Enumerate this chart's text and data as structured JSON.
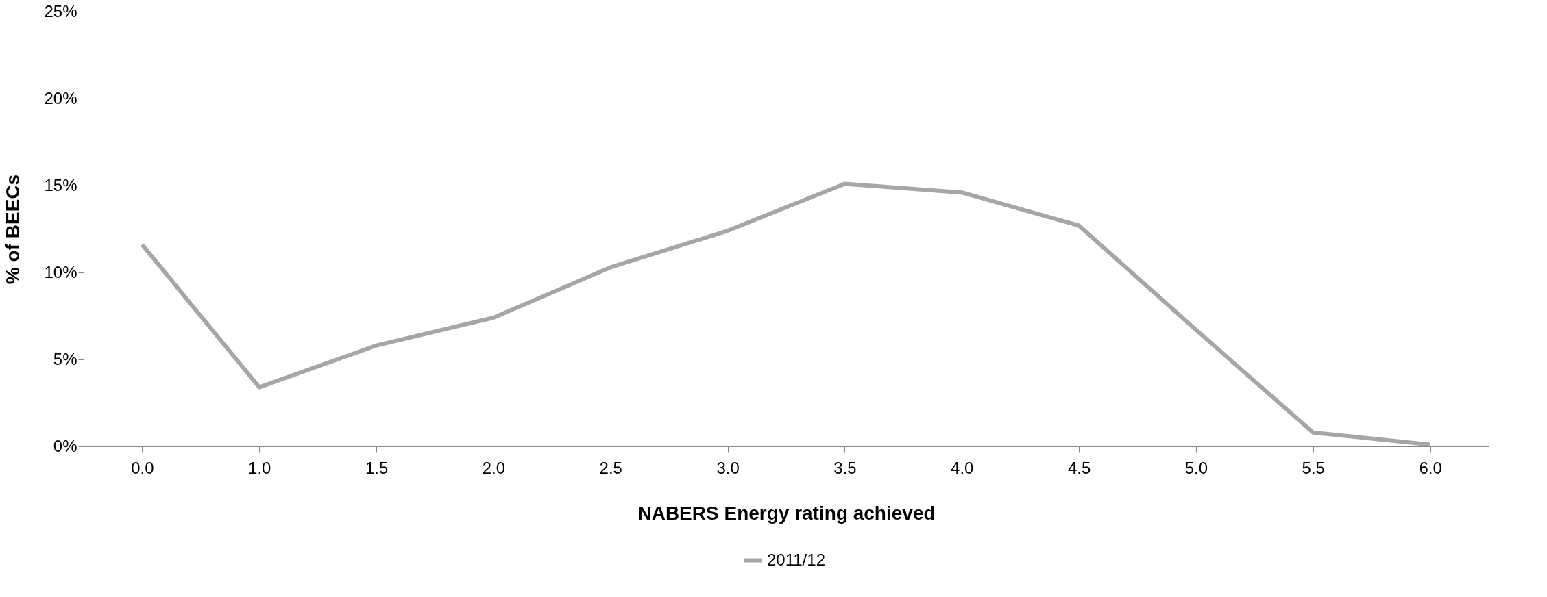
{
  "chart_data": {
    "type": "line",
    "xlabel": "NABERS Energy rating achieved",
    "ylabel": "% of BEECs",
    "categories": [
      "0.0",
      "1.0",
      "1.5",
      "2.0",
      "2.5",
      "3.0",
      "3.5",
      "4.0",
      "4.5",
      "5.0",
      "5.5",
      "6.0"
    ],
    "series": [
      {
        "name": "2011/12",
        "color": "#a6a6a6",
        "values": [
          11.6,
          3.4,
          5.8,
          7.4,
          10.3,
          12.4,
          15.1,
          14.6,
          12.7,
          6.7,
          0.8,
          0.1
        ]
      }
    ],
    "ylim": [
      0,
      25
    ],
    "yticks": [
      {
        "value": 0,
        "label": "0%"
      },
      {
        "value": 5,
        "label": "5%"
      },
      {
        "value": 10,
        "label": "10%"
      },
      {
        "value": 15,
        "label": "15%"
      },
      {
        "value": 20,
        "label": "20%"
      },
      {
        "value": 25,
        "label": "25%"
      }
    ],
    "grid": false,
    "legend": "bottom",
    "marker": "none",
    "line_style": "solid"
  }
}
